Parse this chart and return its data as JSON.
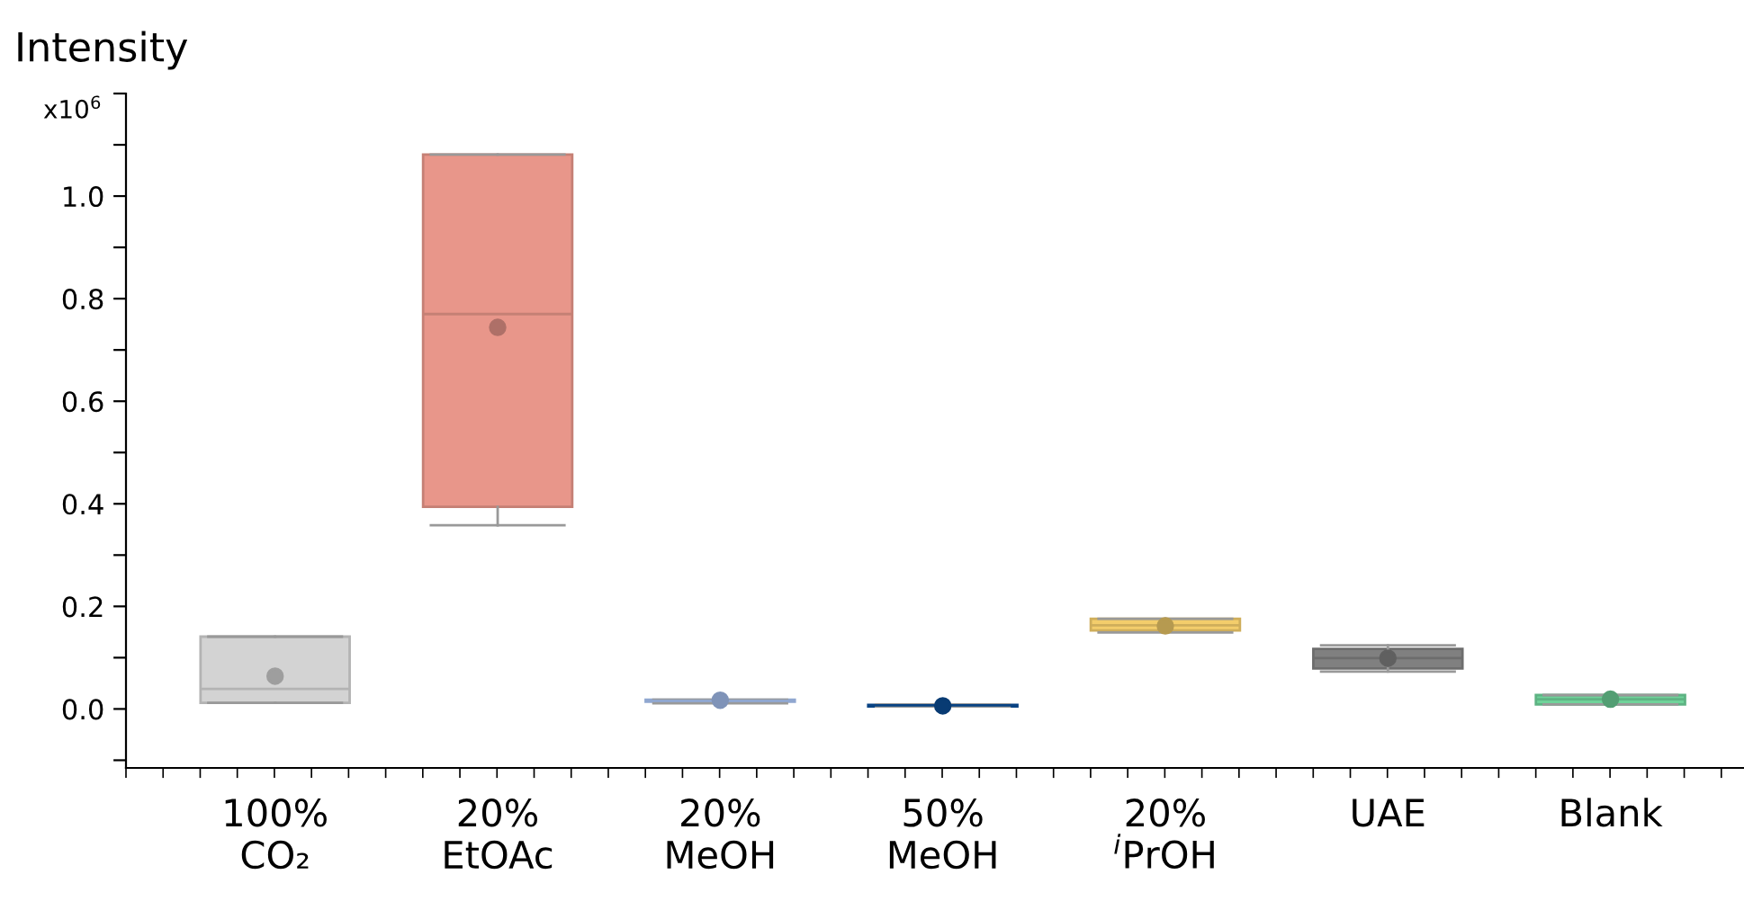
{
  "chart_data": {
    "type": "box",
    "ylabel": "Intensity",
    "annotations": [
      "x10$^{6}$"
    ],
    "categories": [
      "100%\nCO₂",
      "20%\nEtOAc",
      "20%\nMeOH",
      "50%\nMeOH",
      "20%\n$^{i}$PrOH",
      "UAE",
      "Blank"
    ],
    "colors": [
      "#d3d3d3",
      "#e8968a",
      "#a9c4f5",
      "#0b4f9a",
      "#f3cd6b",
      "#808080",
      "#6fd39a"
    ],
    "boxes": [
      {
        "low": 0.012,
        "q1": 0.012,
        "median": 0.039,
        "q3": 0.141,
        "high": 0.141,
        "mean": 0.064
      },
      {
        "low": 0.358,
        "q1": 0.394,
        "median": 0.77,
        "q3": 1.081,
        "high": 1.081,
        "mean": 0.744
      },
      {
        "low": 0.011,
        "q1": 0.014,
        "median": 0.016,
        "q3": 0.018,
        "high": 0.018,
        "mean": 0.017
      },
      {
        "low": 0.005,
        "q1": 0.005,
        "median": 0.007,
        "q3": 0.008,
        "high": 0.009,
        "mean": 0.006
      },
      {
        "low": 0.149,
        "q1": 0.153,
        "median": 0.163,
        "q3": 0.176,
        "high": 0.176,
        "mean": 0.162
      },
      {
        "low": 0.073,
        "q1": 0.079,
        "median": 0.099,
        "q3": 0.117,
        "high": 0.124,
        "mean": 0.099
      },
      {
        "low": 0.009,
        "q1": 0.009,
        "median": 0.019,
        "q3": 0.027,
        "high": 0.027,
        "mean": 0.019
      }
    ],
    "ylim": [
      -0.115,
      1.2
    ],
    "yticks": [
      {
        "value": -0.1,
        "label": null
      },
      {
        "value": 0,
        "label": "0.0"
      },
      {
        "value": 0.1,
        "label": null
      },
      {
        "value": 0.2,
        "label": "0.2"
      },
      {
        "value": 0.3,
        "label": null
      },
      {
        "value": 0.4,
        "label": "0.4"
      },
      {
        "value": 0.5,
        "label": null
      },
      {
        "value": 0.6,
        "label": "0.6"
      },
      {
        "value": 0.7,
        "label": null
      },
      {
        "value": 0.8,
        "label": "0.8"
      },
      {
        "value": 0.9,
        "label": null
      },
      {
        "value": 1,
        "label": "1.0"
      },
      {
        "value": 1.1,
        "label": null
      },
      {
        "value": 1.2,
        "label": null
      }
    ],
    "grid": false,
    "legend": false
  }
}
